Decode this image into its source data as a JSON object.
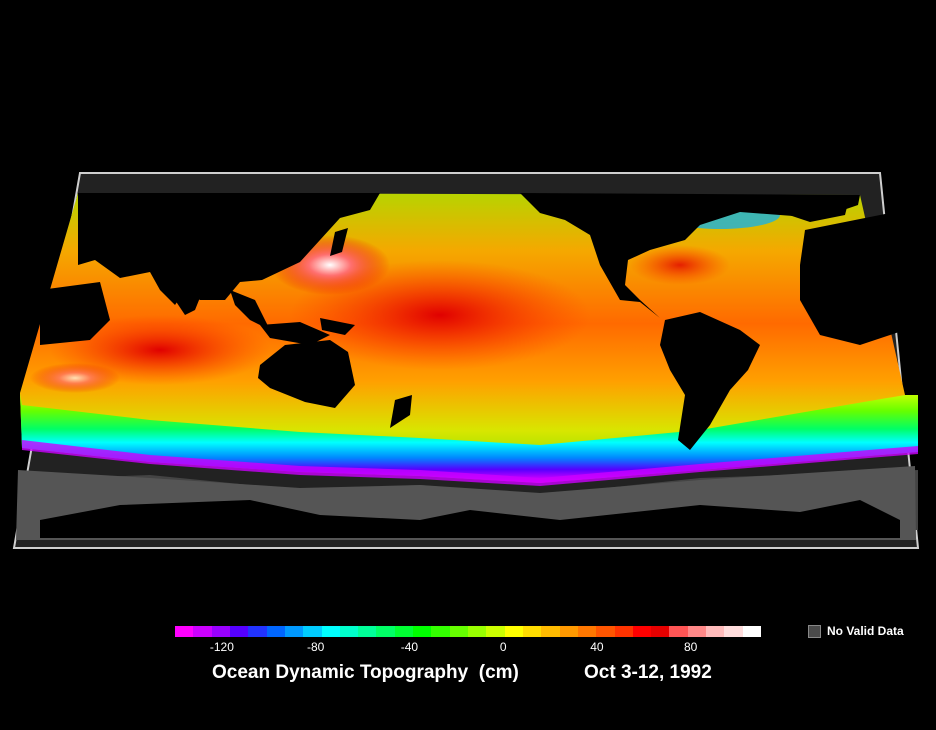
{
  "title": "Ocean Dynamic Topography  (cm)",
  "date": "Oct 3-12, 1992",
  "legend": {
    "no_data_label": "No Valid Data",
    "no_data_color": "#4a4a4a",
    "ticks": [
      "-120",
      "-80",
      "-40",
      "0",
      "40",
      "80"
    ],
    "range_cm": [
      -140,
      110
    ],
    "colors": [
      "#ff00ff",
      "#cc00ff",
      "#9900ff",
      "#5500ff",
      "#2233ff",
      "#0066ff",
      "#0099ff",
      "#00ccff",
      "#00ffff",
      "#00ffcc",
      "#00ff99",
      "#00ff66",
      "#00ff33",
      "#00ff00",
      "#33ff00",
      "#66ff00",
      "#99ff00",
      "#ccff00",
      "#ffff00",
      "#ffdd00",
      "#ffbb00",
      "#ff9900",
      "#ff7700",
      "#ff5500",
      "#ff3300",
      "#ff0000",
      "#e60000",
      "#ff5555",
      "#ff8888",
      "#ffbbbb",
      "#ffdddd",
      "#ffffff"
    ]
  }
}
